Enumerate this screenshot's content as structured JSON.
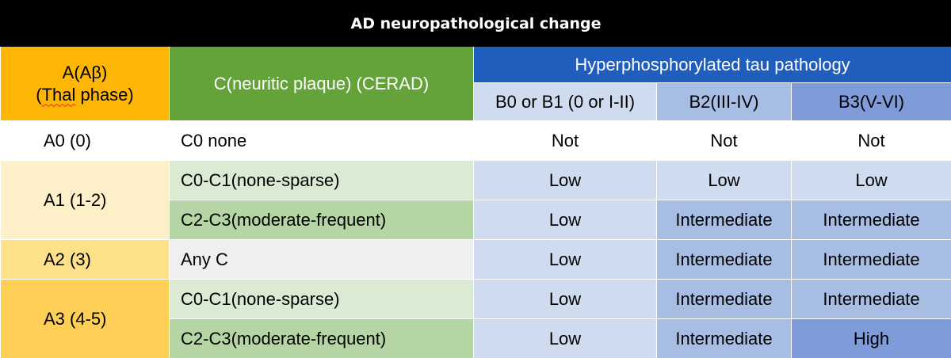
{
  "title": "AD neuropathological change",
  "header": {
    "a_line1": "A(Aβ)",
    "a_line2_spelled": "Thal",
    "a_line2_rest": " phase)",
    "a_line2_open": "(",
    "c": "C(neuritic plaque) (CERAD)",
    "tau": "Hyperphosphorylated tau pathology",
    "b_cols": [
      "B0 or B1 (0 or I-II)",
      "B2(III-IV)",
      "B3(V-VI)"
    ]
  },
  "rows": [
    {
      "a": "A0 (0)",
      "c": "C0 none",
      "b": [
        "Not",
        "Not",
        "Not"
      ]
    },
    {
      "a": "A1 (1-2)",
      "c": "C0-C1(none-sparse)",
      "b": [
        "Low",
        "Low",
        "Low"
      ]
    },
    {
      "a": "",
      "c": "C2-C3(moderate-frequent)",
      "b": [
        "Low",
        "Intermediate",
        "Intermediate"
      ]
    },
    {
      "a": "A2 (3)",
      "c": "Any C",
      "b": [
        "Low",
        "Intermediate",
        "Intermediate"
      ]
    },
    {
      "a": "A3 (4-5)",
      "c": "C0-C1(none-sparse)",
      "b": [
        "Low",
        "Intermediate",
        "Intermediate"
      ]
    },
    {
      "a": "",
      "c": "C2-C3(moderate-frequent)",
      "b": [
        "Low",
        "Intermediate",
        "High"
      ]
    }
  ],
  "colors": {
    "title_bg": "#000000",
    "a_header": "#fdb506",
    "c_header": "#63a33a",
    "tau_header": "#1f5ebc",
    "b0_header": "#cfdbee",
    "b2_header": "#a8bde3",
    "b3_header": "#7f9bda"
  }
}
